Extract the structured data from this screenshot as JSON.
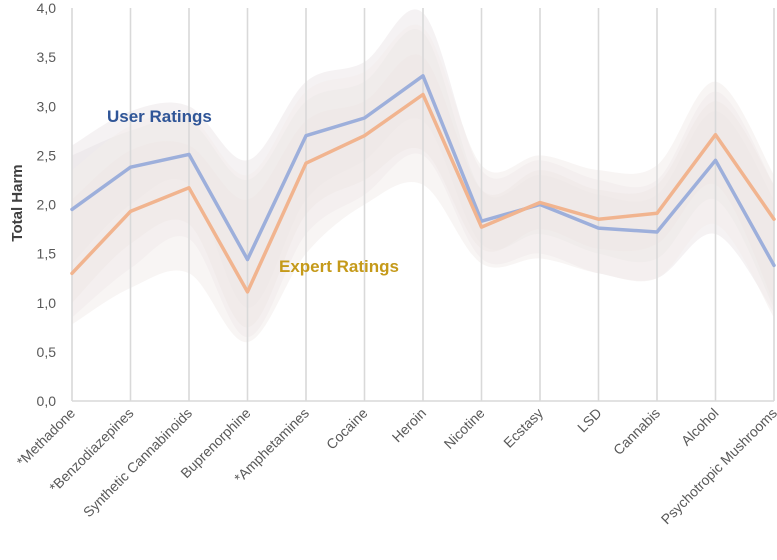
{
  "chart_data": {
    "type": "line",
    "title": "",
    "xlabel": "",
    "ylabel": "Total Harm",
    "ylim": [
      0,
      4
    ],
    "yticks": [
      "0,0",
      "0,5",
      "1,0",
      "1,5",
      "2,0",
      "2,5",
      "3,0",
      "3,5",
      "4,0"
    ],
    "grid": "vertical",
    "categories": [
      "*Methadone",
      "*Benzodiazepines",
      "Synthetic Cannabinoids",
      "Buprenorphine",
      "*Amphetamines",
      "Cocaine",
      "Heroin",
      "Nicotine",
      "Ecstasy",
      "LSD",
      "Cannabis",
      "Alcohol",
      "Psychotropic Mushrooms"
    ],
    "series": [
      {
        "name": "User Ratings",
        "color": "#9dafdb",
        "label_color": "#2f5597",
        "values": [
          1.95,
          2.38,
          2.51,
          1.44,
          2.7,
          2.88,
          3.31,
          1.83,
          2.0,
          1.76,
          1.72,
          2.45,
          1.38
        ],
        "band_inner": [
          [
            1.4,
            2.5
          ],
          [
            2.0,
            2.75
          ],
          [
            2.2,
            2.85
          ],
          [
            0.95,
            2.25
          ],
          [
            2.05,
            3.05
          ],
          [
            2.45,
            3.25
          ],
          [
            2.85,
            3.75
          ],
          [
            1.6,
            2.15
          ],
          [
            1.7,
            2.3
          ],
          [
            1.5,
            2.1
          ],
          [
            1.45,
            2.1
          ],
          [
            2.05,
            2.95
          ],
          [
            0.95,
            2.05
          ]
        ],
        "band_outer": [
          [
            0.85,
            2.6
          ],
          [
            1.35,
            2.95
          ],
          [
            1.65,
            3.0
          ],
          [
            0.65,
            2.45
          ],
          [
            1.7,
            3.25
          ],
          [
            2.1,
            3.45
          ],
          [
            2.5,
            3.95
          ],
          [
            1.45,
            2.35
          ],
          [
            1.5,
            2.45
          ],
          [
            1.3,
            2.25
          ],
          [
            1.25,
            2.25
          ],
          [
            1.7,
            3.15
          ],
          [
            0.9,
            2.2
          ]
        ]
      },
      {
        "name": "Expert Ratings",
        "color": "#f1b48f",
        "label_color": "#c59a1a",
        "values": [
          1.3,
          1.93,
          2.17,
          1.11,
          2.42,
          2.7,
          3.12,
          1.77,
          2.02,
          1.85,
          1.91,
          2.71,
          1.85
        ],
        "band_inner": [
          [
            1.0,
            2.05
          ],
          [
            1.6,
            2.55
          ],
          [
            1.8,
            2.6
          ],
          [
            0.75,
            2.05
          ],
          [
            1.9,
            2.85
          ],
          [
            2.25,
            3.05
          ],
          [
            2.55,
            3.5
          ],
          [
            1.55,
            2.15
          ],
          [
            1.75,
            2.35
          ],
          [
            1.55,
            2.15
          ],
          [
            1.6,
            2.2
          ],
          [
            2.2,
            3.05
          ],
          [
            1.0,
            2.2
          ]
        ],
        "band_outer": [
          [
            0.78,
            2.35
          ],
          [
            1.15,
            2.8
          ],
          [
            1.3,
            2.9
          ],
          [
            0.6,
            2.3
          ],
          [
            1.5,
            3.15
          ],
          [
            2.0,
            3.35
          ],
          [
            2.2,
            3.8
          ],
          [
            1.4,
            2.4
          ],
          [
            1.45,
            2.5
          ],
          [
            1.3,
            2.35
          ],
          [
            1.25,
            2.4
          ],
          [
            1.8,
            3.25
          ],
          [
            0.85,
            2.3
          ]
        ]
      }
    ]
  }
}
